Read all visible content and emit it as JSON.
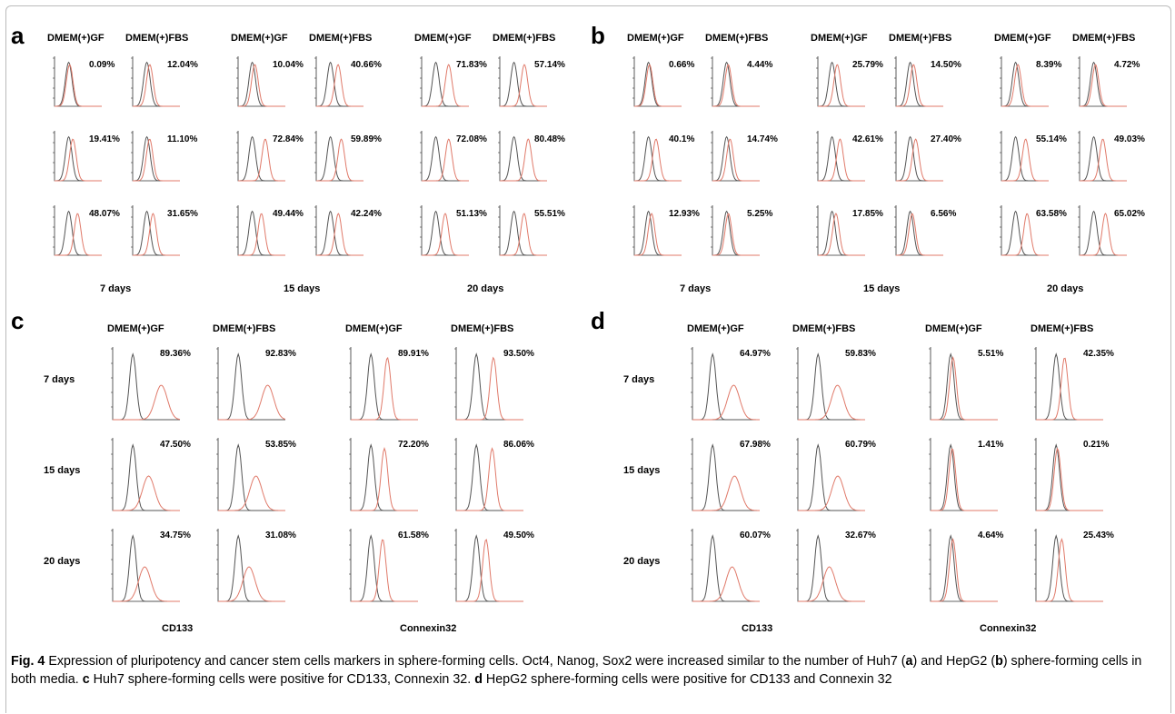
{
  "caption": {
    "fig": "Fig. 4",
    "parts": [
      {
        "t": "  Expression of pluripotency and cancer stem cells markers in sphere-forming cells. Oct4, Nanog, Sox2 were increased similar to the number of Huh7 (",
        "b": false
      },
      {
        "t": "a",
        "b": true
      },
      {
        "t": ") and HepG2 (",
        "b": false
      },
      {
        "t": "b",
        "b": true
      },
      {
        "t": ") sphere-forming cells in both media. ",
        "b": false
      },
      {
        "t": "c",
        "b": true
      },
      {
        "t": " Huh7 sphere-forming cells were positive for CD133, Connexin 32. ",
        "b": false
      },
      {
        "t": "d",
        "b": true
      },
      {
        "t": " HepG2 sphere-forming cells were positive for CD133 and Connexin 32",
        "b": false
      }
    ]
  },
  "colors": {
    "control": "#555555",
    "sample": "#e07a6a"
  },
  "media": [
    "DMEM(+)GF",
    "DMEM(+)FBS"
  ],
  "chart_data": [
    {
      "panel": "a",
      "type": "histogram-grid",
      "groups": [
        "7 days",
        "15 days",
        "20 days"
      ],
      "rows": [
        {
          "marker": "Oct4",
          "percent": [
            "0.09%",
            "12.04%",
            "10.04%",
            "40.66%",
            "71.83%",
            "57.14%"
          ]
        },
        {
          "marker": "Nanog",
          "percent": [
            "19.41%",
            "11.10%",
            "72.84%",
            "59.89%",
            "72.08%",
            "80.48%"
          ]
        },
        {
          "marker": "Sox2",
          "percent": [
            "48.07%",
            "31.65%",
            "49.44%",
            "42.24%",
            "51.13%",
            "55.51%"
          ]
        }
      ]
    },
    {
      "panel": "b",
      "type": "histogram-grid",
      "groups": [
        "7 days",
        "15 days",
        "20 days"
      ],
      "rows": [
        {
          "marker": "Oct4",
          "percent": [
            "0.66%",
            "4.44%",
            "25.79%",
            "14.50%",
            "8.39%",
            "4.72%"
          ]
        },
        {
          "marker": "Nanog",
          "percent": [
            "40.1%",
            "14.74%",
            "42.61%",
            "27.40%",
            "55.14%",
            "49.03%"
          ]
        },
        {
          "marker": "Sox2",
          "percent": [
            "12.93%",
            "5.25%",
            "17.85%",
            "6.56%",
            "63.58%",
            "65.02%"
          ]
        }
      ]
    },
    {
      "panel": "c",
      "type": "histogram-grid",
      "row_labels": [
        "7 days",
        "15 days",
        "20 days"
      ],
      "markers": [
        "CD133",
        "Connexin32"
      ],
      "percent": [
        [
          "89.36%",
          "92.83%",
          "89.91%",
          "93.50%"
        ],
        [
          "47.50%",
          "53.85%",
          "72.20%",
          "86.06%"
        ],
        [
          "34.75%",
          "31.08%",
          "61.58%",
          "49.50%"
        ]
      ]
    },
    {
      "panel": "d",
      "type": "histogram-grid",
      "row_labels": [
        "7 days",
        "15 days",
        "20 days"
      ],
      "markers": [
        "CD133",
        "Connexin32"
      ],
      "percent": [
        [
          "64.97%",
          "59.83%",
          "5.51%",
          "42.35%"
        ],
        [
          "67.98%",
          "60.79%",
          "1.41%",
          "0.21%"
        ],
        [
          "60.07%",
          "32.67%",
          "4.64%",
          "25.43%"
        ]
      ]
    }
  ]
}
